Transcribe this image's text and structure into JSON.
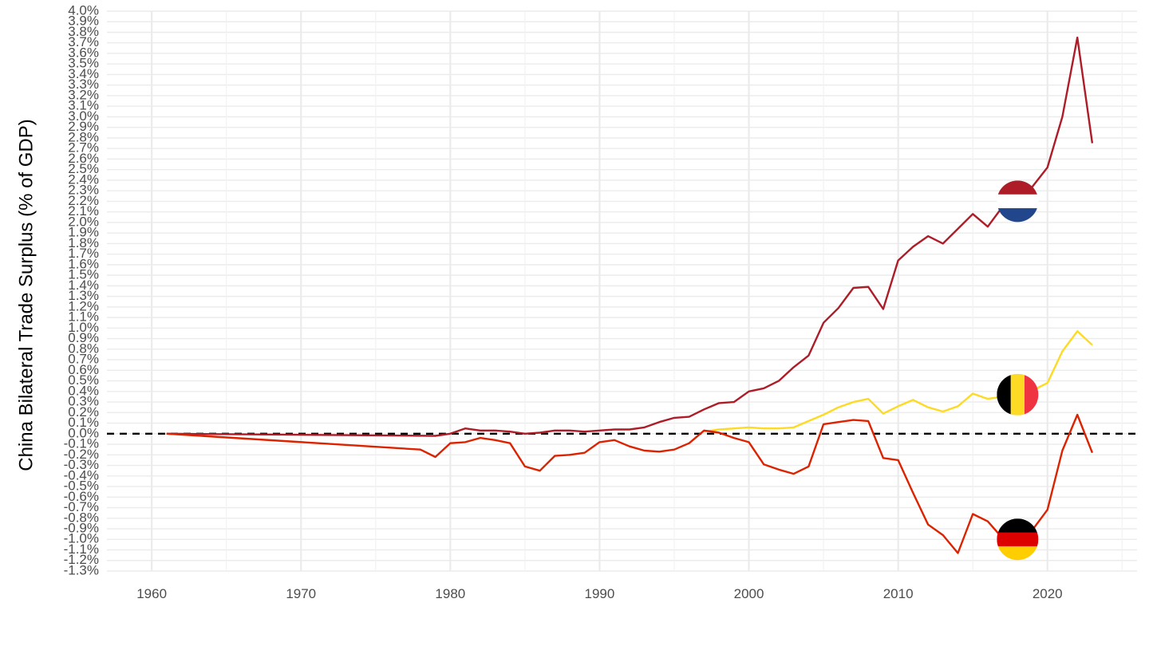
{
  "chart_data": {
    "type": "line",
    "ylabel": "China Bilateral Trade Surplus (% of GDP)",
    "xlabel": "",
    "xlim": [
      1957,
      2026
    ],
    "ylim": [
      -1.3,
      4.0
    ],
    "x_ticks": [
      1960,
      1970,
      1980,
      1990,
      2000,
      2010,
      2020
    ],
    "x_tick_labels": [
      "1960",
      "1970",
      "1980",
      "1990",
      "2000",
      "2010",
      "2020"
    ],
    "y_ticks": [
      -1.3,
      -1.2,
      -1.1,
      -1.0,
      -0.9,
      -0.8,
      -0.7,
      -0.6,
      -0.5,
      -0.4,
      -0.3,
      -0.2,
      -0.1,
      0.0,
      0.1,
      0.2,
      0.3,
      0.4,
      0.5,
      0.6,
      0.7,
      0.8,
      0.9,
      1.0,
      1.1,
      1.2,
      1.3,
      1.4,
      1.5,
      1.6,
      1.7,
      1.8,
      1.9,
      2.0,
      2.1,
      2.2,
      2.3,
      2.4,
      2.5,
      2.6,
      2.7,
      2.8,
      2.9,
      3.0,
      3.1,
      3.2,
      3.3,
      3.4,
      3.5,
      3.6,
      3.7,
      3.8,
      3.9,
      4.0
    ],
    "y_tick_labels": [
      "-1.3%",
      "-1.2%",
      "-1.1%",
      "-1.0%",
      "-0.9%",
      "-0.8%",
      "-0.7%",
      "-0.6%",
      "-0.5%",
      "-0.4%",
      "-0.3%",
      "-0.2%",
      "-0.1%",
      "0.0%",
      "0.1%",
      "0.2%",
      "0.3%",
      "0.4%",
      "0.5%",
      "0.6%",
      "0.7%",
      "0.8%",
      "0.9%",
      "1.0%",
      "1.1%",
      "1.2%",
      "1.3%",
      "1.4%",
      "1.5%",
      "1.6%",
      "1.7%",
      "1.8%",
      "1.9%",
      "2.0%",
      "2.1%",
      "2.2%",
      "2.3%",
      "2.4%",
      "2.5%",
      "2.6%",
      "2.7%",
      "2.8%",
      "2.9%",
      "3.0%",
      "3.1%",
      "3.2%",
      "3.3%",
      "3.4%",
      "3.5%",
      "3.6%",
      "3.7%",
      "3.8%",
      "3.9%",
      "4.0%"
    ],
    "grid": true,
    "reference_line": {
      "y": 0.0,
      "style": "dashed",
      "color": "#000000"
    },
    "series": [
      {
        "key": "netherlands",
        "color": "#AE1C28",
        "flag": "netherlands-flag",
        "flag_colors": [
          "#AE1C28",
          "#FFFFFF",
          "#21468B"
        ],
        "flag_at": [
          2018,
          2.2
        ],
        "x": [
          1961,
          1979,
          1980,
          1981,
          1982,
          1983,
          1984,
          1985,
          1986,
          1987,
          1988,
          1989,
          1990,
          1991,
          1992,
          1993,
          1994,
          1995,
          1996,
          1997,
          1998,
          1999,
          2000,
          2001,
          2002,
          2003,
          2004,
          2005,
          2006,
          2007,
          2008,
          2009,
          2010,
          2011,
          2012,
          2013,
          2014,
          2015,
          2016,
          2017,
          2018,
          2019,
          2020,
          2021,
          2022,
          2023
        ],
        "y": [
          0.0,
          -0.02,
          0.0,
          0.05,
          0.03,
          0.03,
          0.02,
          0.0,
          0.01,
          0.03,
          0.03,
          0.02,
          0.03,
          0.04,
          0.04,
          0.06,
          0.11,
          0.15,
          0.16,
          0.23,
          0.29,
          0.3,
          0.4,
          0.43,
          0.5,
          0.63,
          0.74,
          1.05,
          1.19,
          1.38,
          1.39,
          1.18,
          1.64,
          1.77,
          1.87,
          1.8,
          1.94,
          2.08,
          1.96,
          2.15,
          2.21,
          2.34,
          2.52,
          3.0,
          3.75,
          2.75
        ]
      },
      {
        "key": "belgium",
        "color": "#FDDA24",
        "flag": "belgium-flag",
        "flag_colors": [
          "#000000",
          "#FDDA24",
          "#EF3340"
        ],
        "flag_at": [
          2018,
          0.37
        ],
        "x": [
          1997,
          1998,
          1999,
          2000,
          2001,
          2002,
          2003,
          2004,
          2005,
          2006,
          2007,
          2008,
          2009,
          2010,
          2011,
          2012,
          2013,
          2014,
          2015,
          2016,
          2017,
          2018,
          2019,
          2020,
          2021,
          2022,
          2023
        ],
        "y": [
          0.02,
          0.04,
          0.05,
          0.06,
          0.05,
          0.05,
          0.06,
          0.12,
          0.18,
          0.25,
          0.3,
          0.33,
          0.19,
          0.26,
          0.32,
          0.25,
          0.21,
          0.26,
          0.38,
          0.33,
          0.35,
          0.4,
          0.41,
          0.48,
          0.78,
          0.97,
          0.84
        ]
      },
      {
        "key": "germany",
        "color": "#DD2200",
        "flag": "germany-flag",
        "flag_colors": [
          "#000000",
          "#DD0000",
          "#FFCE00"
        ],
        "flag_at": [
          2018,
          -1.0
        ],
        "x": [
          1961,
          1978,
          1979,
          1980,
          1981,
          1982,
          1983,
          1984,
          1985,
          1986,
          1987,
          1988,
          1989,
          1990,
          1991,
          1992,
          1993,
          1994,
          1995,
          1996,
          1997,
          1998,
          1999,
          2000,
          2001,
          2002,
          2003,
          2004,
          2005,
          2006,
          2007,
          2008,
          2009,
          2010,
          2011,
          2012,
          2013,
          2014,
          2015,
          2016,
          2017,
          2018,
          2019,
          2020,
          2021,
          2022,
          2023
        ],
        "y": [
          0.0,
          -0.15,
          -0.22,
          -0.09,
          -0.08,
          -0.04,
          -0.06,
          -0.09,
          -0.31,
          -0.35,
          -0.21,
          -0.2,
          -0.18,
          -0.08,
          -0.06,
          -0.12,
          -0.16,
          -0.17,
          -0.15,
          -0.09,
          0.03,
          0.01,
          -0.04,
          -0.08,
          -0.29,
          -0.34,
          -0.38,
          -0.31,
          0.09,
          0.11,
          0.13,
          0.12,
          -0.23,
          -0.25,
          -0.56,
          -0.86,
          -0.96,
          -1.13,
          -0.76,
          -0.83,
          -0.99,
          -1.03,
          -0.91,
          -0.72,
          -0.16,
          0.18,
          -0.18
        ]
      }
    ]
  }
}
